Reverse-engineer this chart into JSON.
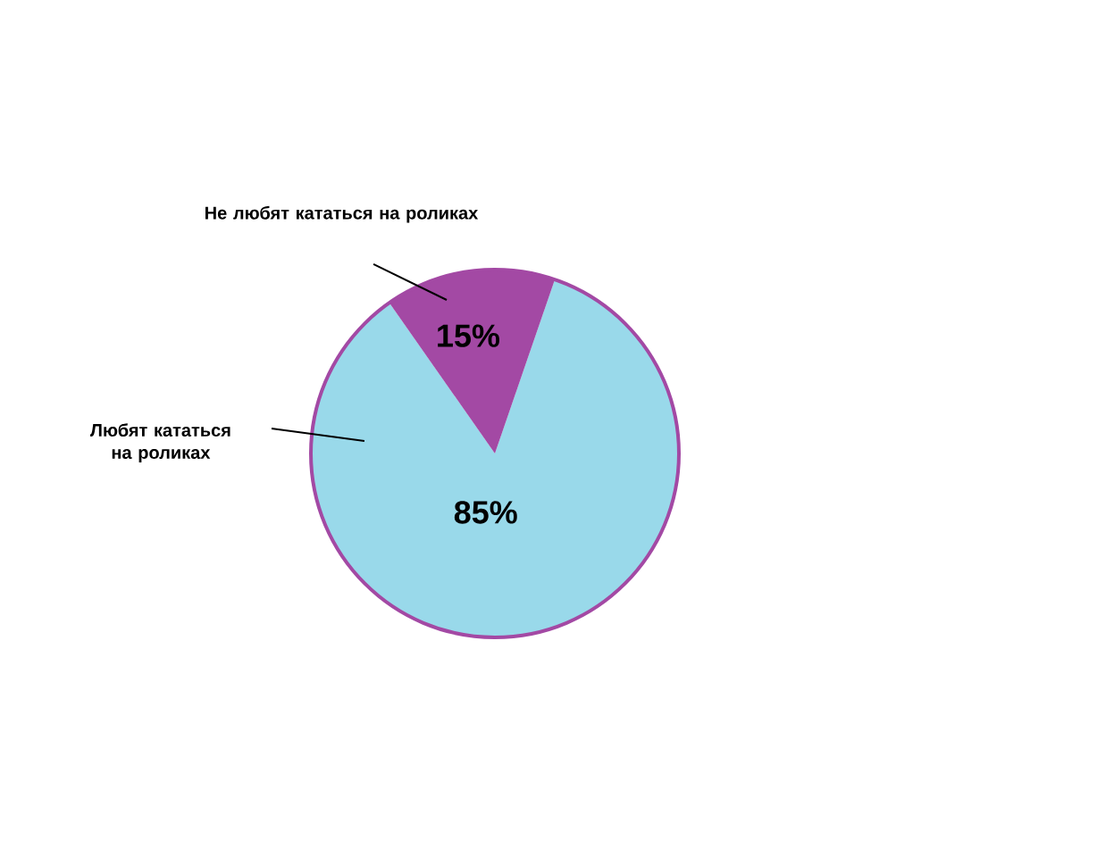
{
  "chart_data": {
    "type": "pie",
    "categories": [
      "Любят кататься на роликах",
      "Не любят кататься на роликах"
    ],
    "values": [
      85,
      15
    ],
    "colors": [
      "#99d9ea",
      "#a349a4"
    ],
    "value_labels": [
      "85%",
      "15%"
    ]
  }
}
